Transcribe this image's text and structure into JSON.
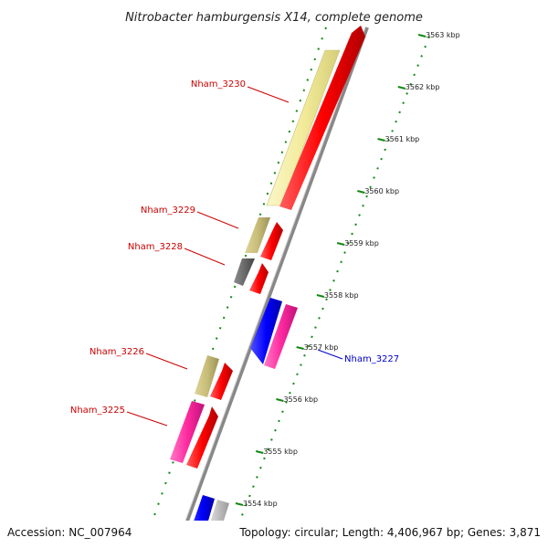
{
  "title": "Nitrobacter hamburgensis X14, complete genome",
  "footer": {
    "accession": "Accession: NC_007964",
    "topology": "Topology: circular; Length: 4,406,967 bp; Genes: 3,871"
  },
  "ticks": [
    {
      "label": "3563 kbp",
      "kbp": 3563
    },
    {
      "label": "3562 kbp",
      "kbp": 3562
    },
    {
      "label": "3561 kbp",
      "kbp": 3561
    },
    {
      "label": "3560 kbp",
      "kbp": 3560
    },
    {
      "label": "3559 kbp",
      "kbp": 3559
    },
    {
      "label": "3558 kbp",
      "kbp": 3558
    },
    {
      "label": "3557 kbp",
      "kbp": 3557
    },
    {
      "label": "3556 kbp",
      "kbp": 3556
    },
    {
      "label": "3555 kbp",
      "kbp": 3555
    },
    {
      "label": "3554 kbp",
      "kbp": 3554
    }
  ],
  "gene_labels": [
    {
      "text": "Nham_3230",
      "color": "#cc0000"
    },
    {
      "text": "Nham_3229",
      "color": "#cc0000"
    },
    {
      "text": "Nham_3228",
      "color": "#cc0000"
    },
    {
      "text": "Nham_3226",
      "color": "#cc0000"
    },
    {
      "text": "Nham_3225",
      "color": "#cc0000"
    },
    {
      "text": "Nham_3227",
      "color": "#0000cc"
    }
  ],
  "colors": {
    "cds": "#ff0000",
    "cog_yellow": "#f2eb9a",
    "cog_khaki": "#c8bd78",
    "cog_gray": "#6a6a6a",
    "cog_blue": "#0000ff",
    "cog_pink": "#ff2aa0",
    "cog_silver": "#c8c8c8",
    "backbone": "#888888",
    "tick": "#118811"
  }
}
